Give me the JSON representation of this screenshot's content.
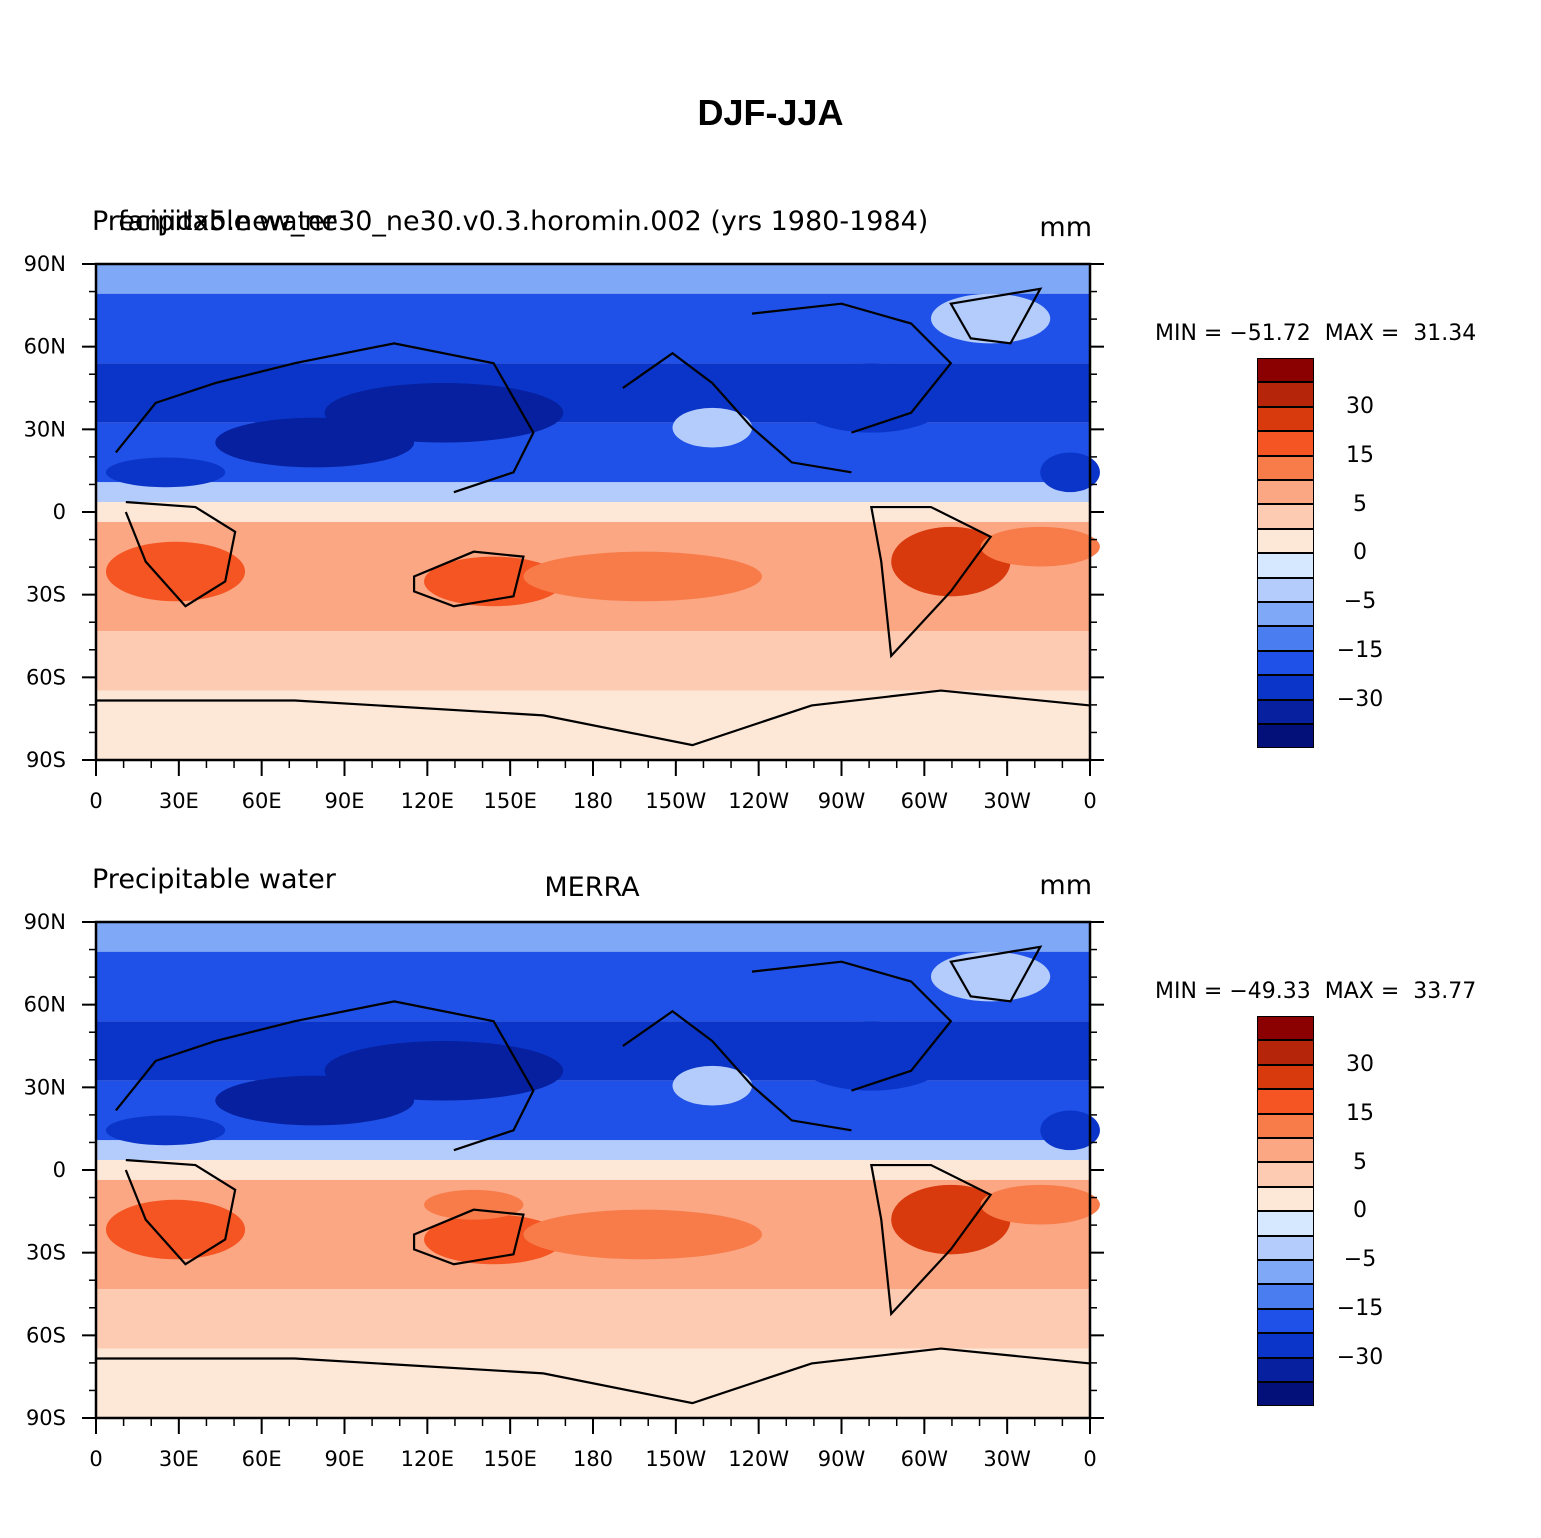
{
  "title": "DJF-JJA",
  "panels": [
    {
      "left_title": "Precipitable water",
      "center_title": "fanjidx5.new_ne30_ne30.v0.3.horomin.002 (yrs 1980-1984)",
      "units": "mm",
      "min_label": "MIN = −51.72",
      "max_label": "MAX =  31.34"
    },
    {
      "left_title": "Precipitable water",
      "center_title": "MERRA",
      "units": "mm",
      "min_label": "MIN = −49.33",
      "max_label": "MAX =  33.77"
    }
  ],
  "lat_ticks": [
    "90N",
    "60N",
    "30N",
    "0",
    "30S",
    "60S",
    "90S"
  ],
  "lon_ticks": [
    "0",
    "30E",
    "60E",
    "90E",
    "120E",
    "150E",
    "180",
    "150W",
    "120W",
    "90W",
    "60W",
    "30W",
    "0"
  ],
  "colorbar": {
    "colors": [
      "#8b0000",
      "#b5250a",
      "#d83a0e",
      "#f45523",
      "#f77c4a",
      "#fba784",
      "#fdcbb2",
      "#fde8d8",
      "#d6e8ff",
      "#b3ccfc",
      "#7fa8f7",
      "#4a7ef0",
      "#1f51e8",
      "#0a35c8",
      "#0620a0",
      "#03107a"
    ],
    "labels": [
      "30",
      "15",
      "5",
      "0",
      "−5",
      "−15",
      "−30"
    ]
  }
}
